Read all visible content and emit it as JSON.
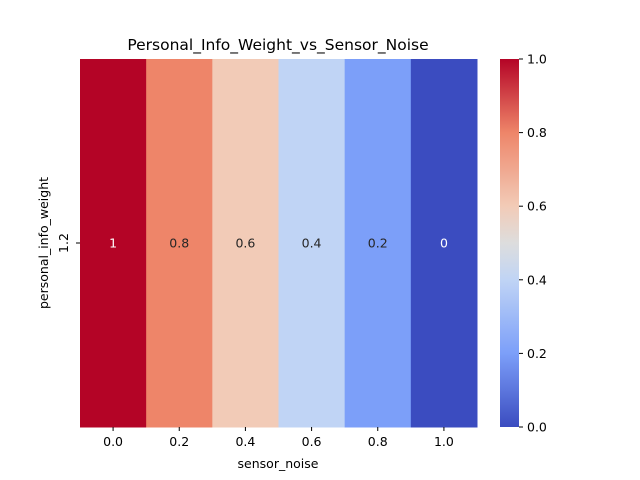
{
  "chart_data": {
    "type": "heatmap",
    "title": "Personal_Info_Weight_vs_Sensor_Noise",
    "xlabel": "sensor_noise",
    "ylabel": "personal_info_weight",
    "x_categories": [
      "0.0",
      "0.2",
      "0.4",
      "0.6",
      "0.8",
      "1.0"
    ],
    "y_categories": [
      "1.2"
    ],
    "values": [
      [
        1,
        0.8,
        0.6,
        0.4,
        0.2,
        0
      ]
    ],
    "cell_labels": [
      [
        "1",
        "0.8",
        "0.6",
        "0.4",
        "0.2",
        "0"
      ]
    ],
    "colormap": "coolwarm",
    "vmin": 0,
    "vmax": 1,
    "colorbar_ticks": [
      "0.0",
      "0.2",
      "0.4",
      "0.6",
      "0.8",
      "1.0"
    ],
    "grid": false
  }
}
